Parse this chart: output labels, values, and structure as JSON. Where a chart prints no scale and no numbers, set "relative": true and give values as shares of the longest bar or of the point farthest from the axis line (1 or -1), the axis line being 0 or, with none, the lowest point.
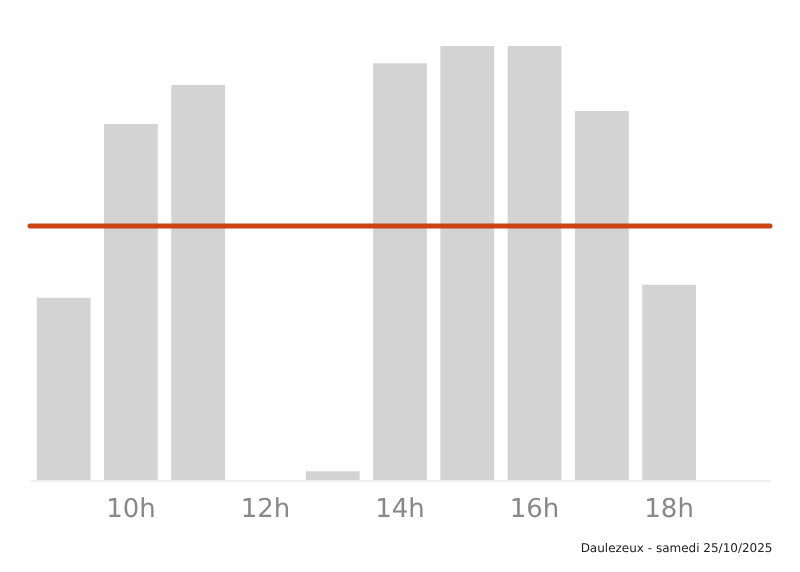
{
  "chart_data": {
    "type": "bar",
    "relative": true,
    "categories": [
      null,
      "10h",
      null,
      "12h",
      null,
      "14h",
      null,
      "16h",
      null,
      "18h",
      null
    ],
    "values": [
      0.42,
      0.82,
      0.91,
      0,
      0.02,
      0.96,
      1,
      1,
      0.85,
      0.45,
      0
    ],
    "color": "#d3d3d3",
    "ref_lines": [
      {
        "axis": "y",
        "value": 0.585,
        "color": "#cc4411"
      }
    ],
    "grid": false,
    "annotations": [
      "Daulezeux - samedi 25/10/2025"
    ]
  }
}
